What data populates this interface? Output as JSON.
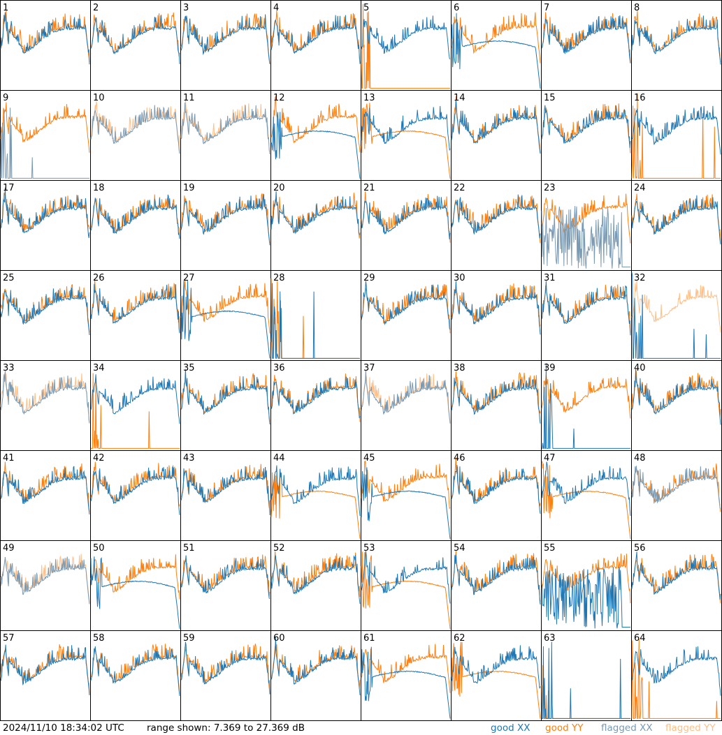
{
  "chart_data": {
    "type": "line",
    "layout": "8x8 small multiples",
    "footer": {
      "timestamp": "2024/11/10 18:34:02 UTC",
      "range_text": "range shown: 7.369 to 27.369 dB"
    },
    "ylim": [
      7.369,
      27.369
    ],
    "y_unit": "dB",
    "legend": [
      {
        "word": "good",
        "pol": "XX",
        "color": "#1f77b4"
      },
      {
        "word": "good",
        "pol": "YY",
        "color": "#ff7f0e"
      },
      {
        "word": "flagged",
        "pol": "XX",
        "color": "#7a9ab3"
      },
      {
        "word": "flagged",
        "pol": "YY",
        "color": "#ffbf87"
      }
    ],
    "colors": {
      "good_xx": "#1f77b4",
      "good_yy": "#ff7f0e",
      "flagged_xx": "#7a9ab3",
      "flagged_yy": "#ffbf87"
    },
    "panel_labels": [
      "1",
      "2",
      "3",
      "4",
      "5",
      "6",
      "7",
      "8",
      "9",
      "10",
      "11",
      "12",
      "13",
      "14",
      "15",
      "16",
      "17",
      "18",
      "19",
      "20",
      "21",
      "22",
      "23",
      "24",
      "25",
      "26",
      "27",
      "28",
      "29",
      "30",
      "31",
      "32",
      "33",
      "34",
      "35",
      "36",
      "37",
      "38",
      "39",
      "40",
      "41",
      "42",
      "43",
      "44",
      "45",
      "46",
      "47",
      "48",
      "49",
      "50",
      "51",
      "52",
      "53",
      "54",
      "55",
      "56",
      "57",
      "58",
      "59",
      "60",
      "61",
      "62",
      "63",
      "64"
    ],
    "flagged_panels": {
      "xx": [
        9,
        10,
        11,
        23,
        33,
        37,
        48,
        49
      ],
      "yy": [
        10,
        11,
        32,
        33,
        37,
        49
      ]
    }
  }
}
